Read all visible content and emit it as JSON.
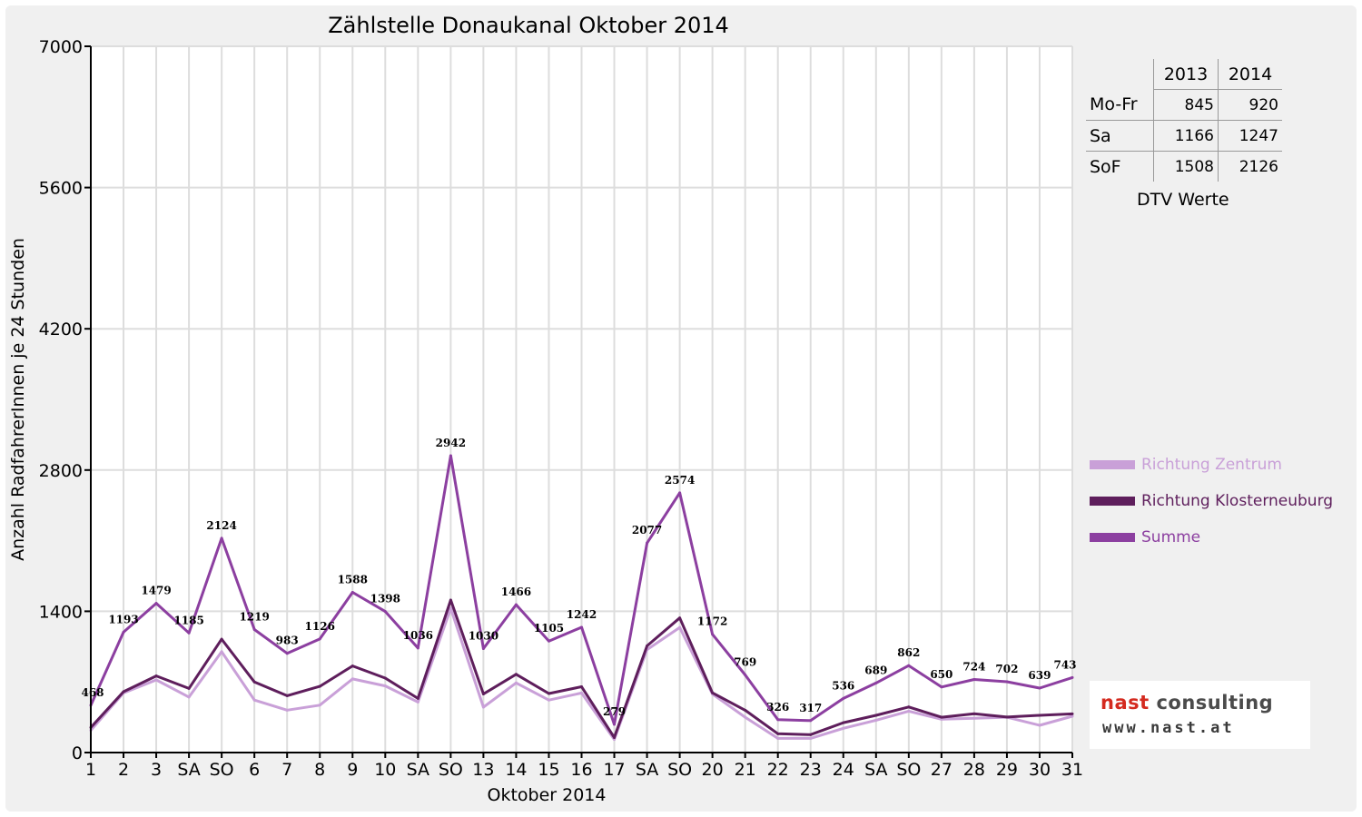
{
  "chart_data": {
    "type": "line",
    "title": "Zählstelle Donaukanal Oktober 2014",
    "xlabel": "Oktober 2014",
    "ylabel": "Anzahl RadfahrerInnen je 24 Stunden",
    "ylim": [
      0,
      7000
    ],
    "yticks": [
      "0",
      "1400",
      "2800",
      "4200",
      "5600",
      "7000"
    ],
    "categories": [
      "1",
      "2",
      "3",
      "SA",
      "SO",
      "6",
      "7",
      "8",
      "9",
      "10",
      "SA",
      "SO",
      "13",
      "14",
      "15",
      "16",
      "17",
      "SA",
      "SO",
      "20",
      "21",
      "22",
      "23",
      "24",
      "SA",
      "SO",
      "27",
      "28",
      "29",
      "30",
      "31"
    ],
    "sunday_color": "#ff0000",
    "grid": true,
    "legend_position": "right",
    "series": [
      {
        "name": "Richtung Zentrum",
        "color": "#c9a0d8",
        "values": [
          220,
          590,
          720,
          550,
          1000,
          520,
          420,
          470,
          730,
          660,
          500,
          1430,
          450,
          690,
          520,
          590,
          130,
          1020,
          1240,
          580,
          350,
          140,
          140,
          240,
          320,
          410,
          330,
          340,
          350,
          270,
          360
        ]
      },
      {
        "name": "Richtung Klosterneuburg",
        "color": "#5e1e5c",
        "values": [
          248,
          603,
          759,
          635,
          1124,
          699,
          563,
          656,
          858,
          738,
          536,
          1512,
          580,
          776,
          585,
          652,
          149,
          1057,
          1334,
          592,
          419,
          186,
          177,
          296,
          369,
          452,
          350,
          384,
          352,
          369,
          383
        ]
      },
      {
        "name": "Summe",
        "color": "#8c3fa0",
        "values": [
          468,
          1193,
          1479,
          1185,
          2124,
          1219,
          983,
          1126,
          1588,
          1398,
          1036,
          2942,
          1030,
          1466,
          1105,
          1242,
          279,
          2077,
          2574,
          1172,
          769,
          326,
          317,
          536,
          689,
          862,
          650,
          724,
          702,
          639,
          743
        ]
      }
    ],
    "data_labels": [
      "468",
      "1193",
      "1479",
      "1185",
      "2124",
      "1219",
      "983",
      "1126",
      "1588",
      "1398",
      "1036",
      "2942",
      "1030",
      "1466",
      "1105",
      "1242",
      "279",
      "2077",
      "2574",
      "1172",
      "769",
      "326",
      "317",
      "536",
      "689",
      "862",
      "650",
      "724",
      "702",
      "639",
      "743"
    ]
  },
  "dtv": {
    "caption": "DTV Werte",
    "years": [
      "2013",
      "2014"
    ],
    "rows": [
      {
        "label": "Mo-Fr",
        "v2013": "845",
        "v2014": "920"
      },
      {
        "label": "Sa",
        "v2013": "1166",
        "v2014": "1247"
      },
      {
        "label": "SoF",
        "v2013": "1508",
        "v2014": "2126"
      }
    ]
  },
  "logo": {
    "part1": "nast",
    "part2": "consulting",
    "url": "www.nast.at"
  }
}
